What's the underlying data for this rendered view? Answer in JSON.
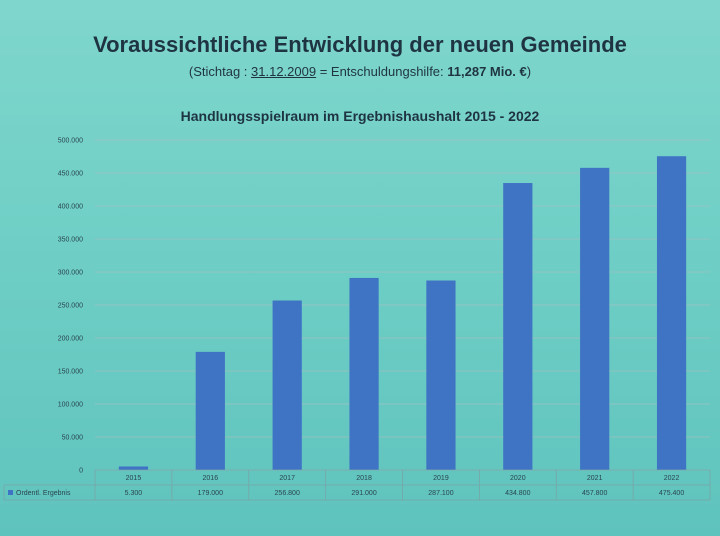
{
  "slide": {
    "title": "Voraussichtliche Entwicklung der neuen Gemeinde",
    "subtitle_prefix": "(Stichtag : ",
    "subtitle_date": "31.12.2009",
    "subtitle_middle": " = Entschuldungshilfe: ",
    "subtitle_amount": "11,287 Mio. €",
    "subtitle_suffix": ")"
  },
  "colors": {
    "bar": "#3f73c4",
    "grid": "#9fbfc2",
    "axis": "#7aa4a8"
  },
  "chart_data": {
    "type": "bar",
    "title": "Handlungsspielraum im Ergebnishaushalt 2015 - 2022",
    "categories": [
      "2015",
      "2016",
      "2017",
      "2018",
      "2019",
      "2020",
      "2021",
      "2022"
    ],
    "series": [
      {
        "name": "Ordentl. Ergebnis",
        "values": [
          5300,
          179000,
          256800,
          291000,
          287100,
          434800,
          457800,
          475400
        ]
      }
    ],
    "value_labels": [
      "5.300",
      "179.000",
      "256.800",
      "291.000",
      "287.100",
      "434.800",
      "457.800",
      "475.400"
    ],
    "ylim": [
      0,
      500000
    ],
    "yticks": [
      0,
      50000,
      100000,
      150000,
      200000,
      250000,
      300000,
      350000,
      400000,
      450000,
      500000
    ],
    "ytick_labels": [
      "0",
      "50.000",
      "100.000",
      "150.000",
      "200.000",
      "250.000",
      "300.000",
      "350.000",
      "400.000",
      "450.000",
      "500.000"
    ],
    "grid": true,
    "legend": "data-table"
  }
}
